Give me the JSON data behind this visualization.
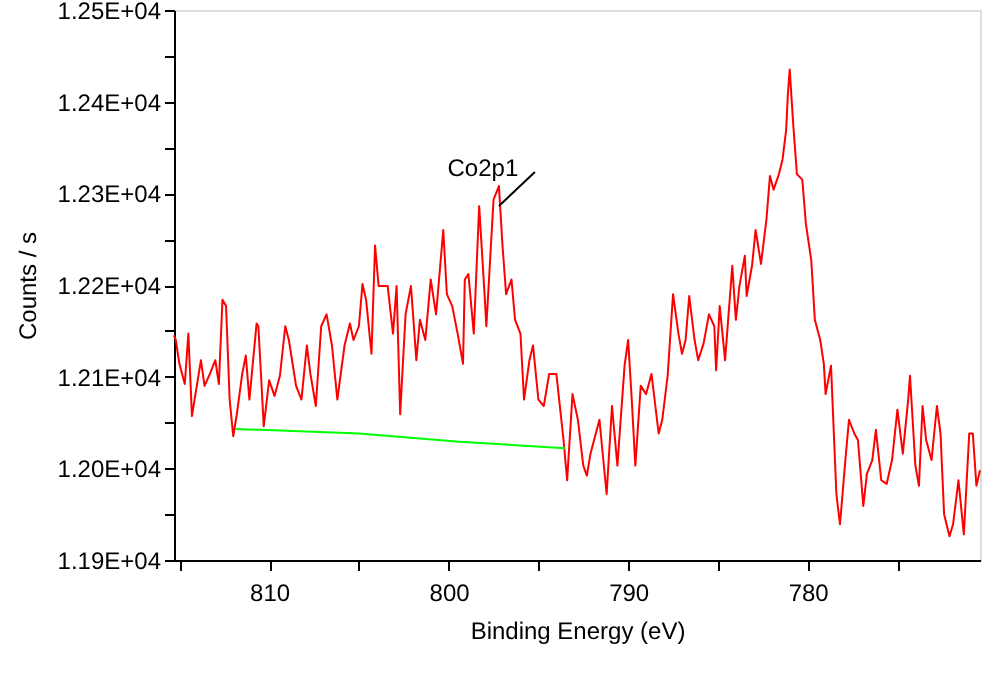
{
  "chart_data": {
    "type": "line",
    "xlabel": "Binding Energy (eV)",
    "ylabel": "Counts / s",
    "xlim": [
      815.3,
      770.4
    ],
    "xticks": [
      {
        "value": 815,
        "label": null
      },
      810,
      {
        "value": 805,
        "label": null
      },
      800,
      {
        "value": 795,
        "label": null
      },
      790,
      {
        "value": 785,
        "label": null
      },
      780,
      {
        "value": 775,
        "label": null
      }
    ],
    "ylim": [
      11900,
      12500
    ],
    "yticks": [
      {
        "value": 11900,
        "label": "1.19E+04"
      },
      {
        "value": 11950,
        "label": null
      },
      {
        "value": 12000,
        "label": "1.20E+04"
      },
      {
        "value": 12050,
        "label": null
      },
      {
        "value": 12100,
        "label": "1.21E+04"
      },
      {
        "value": 12150,
        "label": null
      },
      {
        "value": 12200,
        "label": "1.22E+04"
      },
      {
        "value": 12250,
        "label": null
      },
      {
        "value": 12300,
        "label": "1.23E+04"
      },
      {
        "value": 12350,
        "label": null
      },
      {
        "value": 12400,
        "label": "1.24E+04"
      },
      {
        "value": 12450,
        "label": null
      },
      {
        "value": 12500,
        "label": "1.25E+04"
      }
    ],
    "grid": false,
    "annotations": [
      {
        "text": "Co2p1",
        "x": 797.2,
        "y": 12308
      }
    ],
    "series": [
      {
        "color": "#ff0000",
        "x": [
          815.3,
          815.2,
          815.0,
          814.7,
          814.5,
          814.3,
          813.8,
          813.6,
          813.3,
          813.0,
          812.8,
          812.6,
          812.4,
          812.2,
          812.0,
          811.8,
          811.5,
          811.3,
          811.1,
          810.7,
          810.6,
          810.3,
          810.0,
          809.7,
          809.4,
          809.1,
          808.9,
          808.5,
          808.2,
          807.9,
          807.7,
          807.4,
          807.1,
          806.8,
          806.5,
          806.2,
          805.8,
          805.5,
          805.3,
          805.0,
          804.8,
          804.6,
          804.3,
          804.1,
          803.9,
          803.4,
          803.1,
          802.9,
          802.7,
          802.4,
          802.1,
          801.8,
          801.6,
          801.3,
          801.0,
          800.7,
          800.3,
          800.1,
          799.8,
          799.5,
          799.2,
          799.1,
          798.9,
          798.6,
          798.3,
          798.0,
          797.9,
          797.5,
          797.2,
          797.0,
          796.8,
          796.5,
          796.3,
          796.0,
          795.8,
          795.5,
          795.3,
          795.0,
          794.7,
          794.4,
          794.0,
          793.6,
          793.4,
          793.1,
          792.8,
          792.5,
          792.3,
          792.1,
          791.6,
          791.2,
          790.9,
          790.6,
          790.2,
          790.0,
          789.8,
          789.6,
          789.3,
          789.0,
          788.7,
          788.3,
          788.1,
          787.8,
          787.5,
          787.2,
          787.0,
          786.8,
          786.6,
          786.3,
          786.1,
          785.8,
          785.5,
          785.2,
          785.1,
          784.9,
          784.6,
          784.2,
          784.0,
          783.8,
          783.5,
          783.4,
          783.1,
          782.9,
          782.6,
          782.3,
          782.1,
          781.9,
          781.6,
          781.4,
          781.2,
          781.1,
          781.0,
          780.8,
          780.6,
          780.3,
          780.1,
          779.8,
          779.6,
          779.3,
          779.1,
          779.0,
          778.7,
          778.4,
          778.2,
          777.9,
          777.7,
          777.4,
          777.2,
          776.9,
          776.7,
          776.4,
          776.2,
          775.9,
          775.6,
          775.3,
          775.0,
          774.7,
          774.4,
          774.3,
          774.0,
          773.8,
          773.6,
          773.4,
          773.1,
          772.8,
          772.6,
          772.4,
          772.1,
          771.9,
          771.6,
          771.3,
          771.0,
          770.8,
          770.6,
          770.4
        ],
        "values": [
          12145,
          12140,
          12114,
          12092,
          12147,
          12057,
          12118,
          12090,
          12103,
          12118,
          12092,
          12184,
          12177,
          12075,
          12035,
          12059,
          12103,
          12123,
          12075,
          12158,
          12155,
          12046,
          12096,
          12079,
          12101,
          12155,
          12140,
          12090,
          12075,
          12134,
          12103,
          12068,
          12155,
          12168,
          12134,
          12075,
          12134,
          12158,
          12140,
          12155,
          12201,
          12184,
          12125,
          12243,
          12199,
          12199,
          12147,
          12199,
          12059,
          12168,
          12199,
          12118,
          12162,
          12140,
          12206,
          12168,
          12260,
          12190,
          12177,
          12147,
          12114,
          12206,
          12212,
          12147,
          12286,
          12190,
          12155,
          12293,
          12308,
          12243,
          12190,
          12206,
          12162,
          12147,
          12075,
          12118,
          12134,
          12075,
          12068,
          12103,
          12103,
          12031,
          11987,
          12081,
          12053,
          12003,
          11992,
          12016,
          12053,
          11972,
          12068,
          12003,
          12112,
          12140,
          12075,
          12003,
          12090,
          12081,
          12103,
          12038,
          12053,
          12101,
          12190,
          12147,
          12125,
          12140,
          12188,
          12140,
          12118,
          12136,
          12168,
          12155,
          12107,
          12177,
          12118,
          12221,
          12162,
          12199,
          12232,
          12188,
          12221,
          12260,
          12223,
          12271,
          12319,
          12304,
          12321,
          12337,
          12369,
          12409,
          12435,
          12374,
          12321,
          12315,
          12267,
          12227,
          12162,
          12140,
          12114,
          12081,
          12112,
          11972,
          11939,
          12009,
          12053,
          12038,
          12031,
          11959,
          11994,
          12009,
          12042,
          11987,
          11983,
          12009,
          12064,
          12016,
          12075,
          12101,
          12003,
          11981,
          12068,
          12031,
          12009,
          12068,
          12038,
          11950,
          11926,
          11939,
          11987,
          11928,
          12038,
          12038,
          11981,
          11998
        ]
      },
      {
        "color": "#00ff00",
        "x": [
          811.9,
          805.0,
          799.4,
          793.5
        ],
        "values": [
          12043,
          12038,
          12029,
          12022
        ]
      }
    ]
  }
}
